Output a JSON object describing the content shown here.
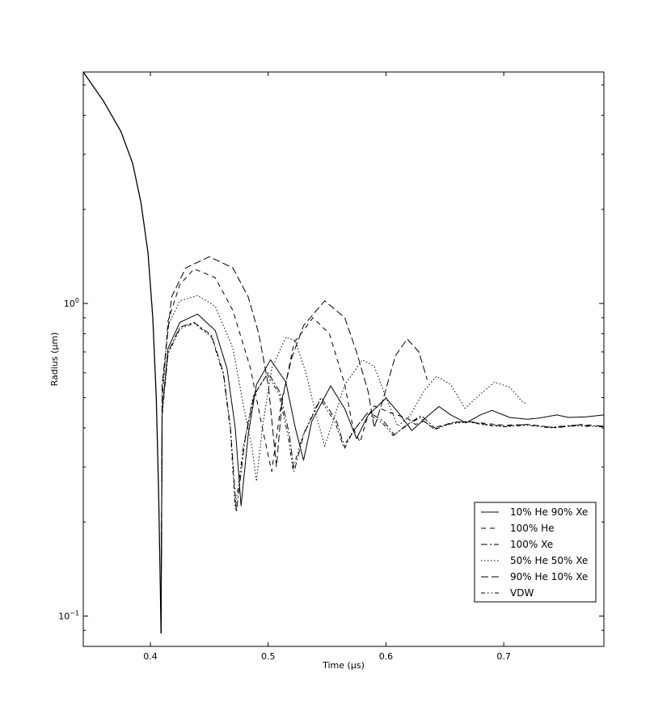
{
  "chart_data": {
    "type": "line",
    "xlabel": "Time (µs)",
    "ylabel": "Radius (µm)",
    "xlim": [
      0.343,
      0.785
    ],
    "ylim": [
      0.08,
      5.5
    ],
    "yscale": "log",
    "grid": false,
    "legend_position": "bottom-right",
    "x_ticks": [
      {
        "value": 0.4,
        "label": "0.4"
      },
      {
        "value": 0.5,
        "label": "0.5"
      },
      {
        "value": 0.6,
        "label": "0.6"
      },
      {
        "value": 0.7,
        "label": "0.7"
      }
    ],
    "y_ticks": [
      {
        "value": 1.0,
        "base": "10",
        "exp": "0"
      },
      {
        "value": 0.1,
        "base": "10",
        "exp": "−1"
      }
    ],
    "collapse_curve": [
      [
        0.343,
        5.5
      ],
      [
        0.36,
        4.45
      ],
      [
        0.375,
        3.55
      ],
      [
        0.385,
        2.8
      ],
      [
        0.392,
        2.1
      ],
      [
        0.398,
        1.45
      ],
      [
        0.402,
        0.9
      ],
      [
        0.405,
        0.5
      ],
      [
        0.407,
        0.25
      ],
      [
        0.4085,
        0.12
      ],
      [
        0.409,
        0.088
      ]
    ],
    "series": [
      {
        "name": "10% He 90% Xe",
        "dash": "solid",
        "points": [
          [
            0.409,
            0.088
          ],
          [
            0.41,
            0.45
          ],
          [
            0.415,
            0.72
          ],
          [
            0.425,
            0.87
          ],
          [
            0.44,
            0.925
          ],
          [
            0.455,
            0.82
          ],
          [
            0.465,
            0.62
          ],
          [
            0.472,
            0.4
          ],
          [
            0.477,
            0.225
          ],
          [
            0.483,
            0.38
          ],
          [
            0.49,
            0.55
          ],
          [
            0.502,
            0.66
          ],
          [
            0.515,
            0.56
          ],
          [
            0.523,
            0.4
          ],
          [
            0.53,
            0.315
          ],
          [
            0.537,
            0.42
          ],
          [
            0.553,
            0.545
          ],
          [
            0.565,
            0.46
          ],
          [
            0.575,
            0.37
          ],
          [
            0.585,
            0.44
          ],
          [
            0.6,
            0.498
          ],
          [
            0.61,
            0.45
          ],
          [
            0.622,
            0.392
          ],
          [
            0.635,
            0.435
          ],
          [
            0.645,
            0.468
          ],
          [
            0.655,
            0.44
          ],
          [
            0.668,
            0.415
          ],
          [
            0.68,
            0.44
          ],
          [
            0.69,
            0.455
          ],
          [
            0.705,
            0.432
          ],
          [
            0.72,
            0.426
          ],
          [
            0.73,
            0.43
          ],
          [
            0.745,
            0.44
          ],
          [
            0.755,
            0.432
          ],
          [
            0.77,
            0.434
          ],
          [
            0.785,
            0.44
          ]
        ]
      },
      {
        "name": "100% He",
        "dash": "6,5",
        "points": [
          [
            0.409,
            0.088
          ],
          [
            0.41,
            0.5
          ],
          [
            0.415,
            0.88
          ],
          [
            0.425,
            1.15
          ],
          [
            0.437,
            1.29
          ],
          [
            0.455,
            1.21
          ],
          [
            0.47,
            0.95
          ],
          [
            0.485,
            0.62
          ],
          [
            0.495,
            0.4
          ],
          [
            0.503,
            0.29
          ],
          [
            0.51,
            0.45
          ],
          [
            0.522,
            0.75
          ],
          [
            0.538,
            0.9
          ],
          [
            0.552,
            0.8
          ],
          [
            0.565,
            0.55
          ],
          [
            0.572,
            0.4
          ],
          [
            0.578,
            0.36
          ],
          [
            0.584,
            0.43
          ],
          [
            0.59,
            0.47
          ],
          [
            0.605,
            0.445
          ],
          [
            0.618,
            0.43
          ],
          [
            0.625,
            0.41
          ],
          [
            0.632,
            0.42
          ],
          [
            0.64,
            0.4
          ],
          [
            0.66,
            0.418
          ],
          [
            0.68,
            0.415
          ],
          [
            0.7,
            0.408
          ],
          [
            0.72,
            0.41
          ],
          [
            0.745,
            0.4
          ],
          [
            0.765,
            0.41
          ],
          [
            0.785,
            0.405
          ]
        ]
      },
      {
        "name": "100% Xe",
        "dash": "8,3,2,3",
        "points": [
          [
            0.409,
            0.088
          ],
          [
            0.41,
            0.45
          ],
          [
            0.415,
            0.7
          ],
          [
            0.425,
            0.84
          ],
          [
            0.437,
            0.87
          ],
          [
            0.452,
            0.79
          ],
          [
            0.462,
            0.6
          ],
          [
            0.468,
            0.4
          ],
          [
            0.473,
            0.215
          ],
          [
            0.48,
            0.36
          ],
          [
            0.488,
            0.51
          ],
          [
            0.5,
            0.6
          ],
          [
            0.51,
            0.52
          ],
          [
            0.518,
            0.38
          ],
          [
            0.522,
            0.29
          ],
          [
            0.53,
            0.38
          ],
          [
            0.545,
            0.5
          ],
          [
            0.558,
            0.42
          ],
          [
            0.565,
            0.345
          ],
          [
            0.572,
            0.39
          ],
          [
            0.585,
            0.45
          ],
          [
            0.598,
            0.42
          ],
          [
            0.607,
            0.38
          ],
          [
            0.618,
            0.41
          ],
          [
            0.63,
            0.438
          ],
          [
            0.642,
            0.398
          ],
          [
            0.655,
            0.415
          ],
          [
            0.67,
            0.42
          ],
          [
            0.685,
            0.41
          ],
          [
            0.7,
            0.405
          ],
          [
            0.72,
            0.41
          ],
          [
            0.74,
            0.402
          ],
          [
            0.76,
            0.408
          ],
          [
            0.785,
            0.405
          ]
        ]
      },
      {
        "name": "50% He 50% Xe",
        "dash": "1.5,2.5",
        "points": [
          [
            0.409,
            0.088
          ],
          [
            0.41,
            0.5
          ],
          [
            0.415,
            0.85
          ],
          [
            0.425,
            1.02
          ],
          [
            0.44,
            1.06
          ],
          [
            0.455,
            0.98
          ],
          [
            0.47,
            0.72
          ],
          [
            0.48,
            0.45
          ],
          [
            0.486,
            0.35
          ],
          [
            0.49,
            0.27
          ],
          [
            0.495,
            0.4
          ],
          [
            0.503,
            0.62
          ],
          [
            0.515,
            0.78
          ],
          [
            0.523,
            0.76
          ],
          [
            0.532,
            0.6
          ],
          [
            0.54,
            0.45
          ],
          [
            0.548,
            0.35
          ],
          [
            0.555,
            0.42
          ],
          [
            0.565,
            0.55
          ],
          [
            0.58,
            0.66
          ],
          [
            0.59,
            0.63
          ],
          [
            0.6,
            0.5
          ],
          [
            0.61,
            0.405
          ],
          [
            0.62,
            0.435
          ],
          [
            0.633,
            0.53
          ],
          [
            0.643,
            0.585
          ],
          [
            0.655,
            0.55
          ],
          [
            0.667,
            0.462
          ],
          [
            0.677,
            0.5
          ],
          [
            0.692,
            0.56
          ],
          [
            0.705,
            0.54
          ],
          [
            0.715,
            0.488
          ],
          [
            0.72,
            0.475
          ]
        ]
      },
      {
        "name": "90% He 10% Xe",
        "dash": "9,4",
        "points": [
          [
            0.409,
            0.088
          ],
          [
            0.41,
            0.55
          ],
          [
            0.418,
            1.05
          ],
          [
            0.43,
            1.3
          ],
          [
            0.45,
            1.41
          ],
          [
            0.47,
            1.3
          ],
          [
            0.483,
            1.05
          ],
          [
            0.492,
            0.8
          ],
          [
            0.5,
            0.55
          ],
          [
            0.507,
            0.3
          ],
          [
            0.512,
            0.5
          ],
          [
            0.52,
            0.67
          ],
          [
            0.53,
            0.85
          ],
          [
            0.548,
            1.02
          ],
          [
            0.565,
            0.9
          ],
          [
            0.575,
            0.7
          ],
          [
            0.585,
            0.52
          ],
          [
            0.59,
            0.4
          ],
          [
            0.598,
            0.5
          ],
          [
            0.608,
            0.68
          ],
          [
            0.618,
            0.77
          ],
          [
            0.628,
            0.7
          ],
          [
            0.635,
            0.57
          ]
        ]
      },
      {
        "name": "VDW",
        "dash": "5,3,1.5,3,1.5,3",
        "points": [
          [
            0.409,
            0.088
          ],
          [
            0.41,
            0.44
          ],
          [
            0.415,
            0.69
          ],
          [
            0.425,
            0.83
          ],
          [
            0.437,
            0.865
          ],
          [
            0.452,
            0.78
          ],
          [
            0.462,
            0.59
          ],
          [
            0.468,
            0.39
          ],
          [
            0.472,
            0.22
          ],
          [
            0.479,
            0.35
          ],
          [
            0.487,
            0.5
          ],
          [
            0.499,
            0.595
          ],
          [
            0.509,
            0.515
          ],
          [
            0.517,
            0.375
          ],
          [
            0.521,
            0.295
          ],
          [
            0.529,
            0.375
          ],
          [
            0.544,
            0.495
          ],
          [
            0.557,
            0.415
          ],
          [
            0.564,
            0.348
          ],
          [
            0.571,
            0.385
          ],
          [
            0.584,
            0.445
          ],
          [
            0.597,
            0.415
          ],
          [
            0.606,
            0.378
          ],
          [
            0.617,
            0.405
          ],
          [
            0.629,
            0.432
          ],
          [
            0.641,
            0.395
          ],
          [
            0.655,
            0.412
          ],
          [
            0.67,
            0.418
          ],
          [
            0.685,
            0.408
          ],
          [
            0.7,
            0.403
          ],
          [
            0.72,
            0.408
          ],
          [
            0.74,
            0.4
          ],
          [
            0.76,
            0.406
          ],
          [
            0.785,
            0.403
          ]
        ]
      }
    ]
  }
}
